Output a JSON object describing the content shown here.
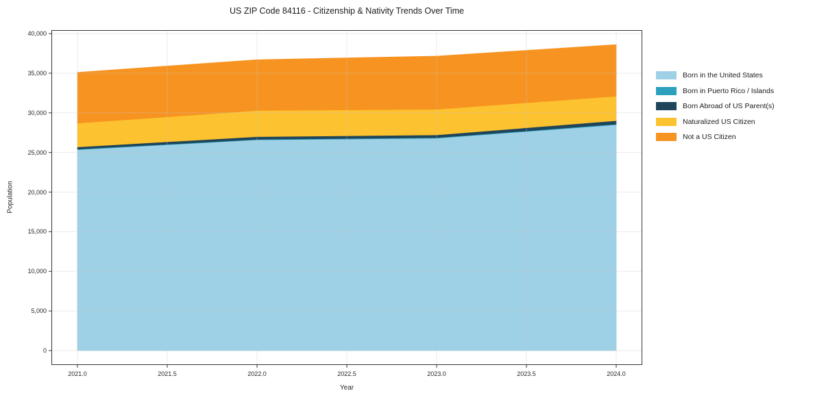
{
  "chart_data": {
    "type": "area",
    "stacked": true,
    "title": "US ZIP Code 84116 - Citizenship & Nativity Trends Over Time",
    "xlabel": "Year",
    "ylabel": "Population",
    "x": [
      2021,
      2022,
      2023,
      2024
    ],
    "series": [
      {
        "name": "Born in the United States",
        "color": "#9ED0E6",
        "values": [
          25350,
          26600,
          26800,
          28500
        ]
      },
      {
        "name": "Born in Puerto Rico / Islands",
        "color": "#2DA0BD",
        "values": [
          70,
          60,
          70,
          80
        ]
      },
      {
        "name": "Born Abroad of US Parent(s)",
        "color": "#1F455B",
        "values": [
          280,
          340,
          350,
          440
        ]
      },
      {
        "name": "Naturalized US Citizen",
        "color": "#FDC22F",
        "values": [
          3000,
          3300,
          3230,
          3080
        ]
      },
      {
        "name": "Not a US Citizen",
        "color": "#F79321",
        "values": [
          6400,
          6400,
          6700,
          6500
        ]
      }
    ],
    "totals": [
      35100,
      36700,
      37150,
      38600
    ],
    "ylim": [
      0,
      40000
    ],
    "xlim": [
      2020.855,
      2024.145
    ],
    "grid": true,
    "legend_position": "right",
    "yticks": [
      {
        "value": 0,
        "label": "0"
      },
      {
        "value": 5000,
        "label": "5,000"
      },
      {
        "value": 10000,
        "label": "10,000"
      },
      {
        "value": 15000,
        "label": "15,000"
      },
      {
        "value": 20000,
        "label": "20,000"
      },
      {
        "value": 25000,
        "label": "25,000"
      },
      {
        "value": 30000,
        "label": "30,000"
      },
      {
        "value": 35000,
        "label": "35,000"
      },
      {
        "value": 40000,
        "label": "40,000"
      }
    ],
    "xticks": [
      {
        "value": 2021.0,
        "label": "2021.0"
      },
      {
        "value": 2021.5,
        "label": "2021.5"
      },
      {
        "value": 2022.0,
        "label": "2022.0"
      },
      {
        "value": 2022.5,
        "label": "2022.5"
      },
      {
        "value": 2023.0,
        "label": "2023.0"
      },
      {
        "value": 2023.5,
        "label": "2023.5"
      },
      {
        "value": 2024.0,
        "label": "2024.0"
      }
    ]
  }
}
